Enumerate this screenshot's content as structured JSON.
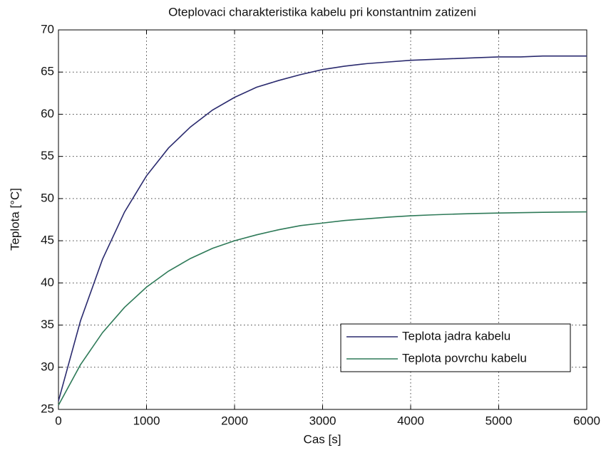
{
  "chart_data": {
    "type": "line",
    "title": "Oteplovaci charakteristika kabelu pri konstantnim zatizeni",
    "xlabel": "Cas [s]",
    "ylabel": "Teplota [°C]",
    "x": [
      0,
      250,
      500,
      750,
      1000,
      1250,
      1500,
      1750,
      2000,
      2250,
      2500,
      2750,
      3000,
      3250,
      3500,
      3750,
      4000,
      4250,
      4500,
      4750,
      5000,
      5250,
      5500,
      5750,
      6000
    ],
    "series": [
      {
        "name": "Teplota jadra kabelu",
        "color": "#2a2a6e",
        "values": [
          26,
          35.5,
          42.8,
          48.4,
          52.7,
          56.0,
          58.5,
          60.5,
          62.0,
          63.2,
          64.0,
          64.7,
          65.3,
          65.7,
          66.0,
          66.2,
          66.4,
          66.5,
          66.6,
          66.7,
          66.8,
          66.8,
          66.9,
          66.9,
          66.9
        ]
      },
      {
        "name": "Teplota povrchu kabelu",
        "color": "#2e7a58",
        "values": [
          25.5,
          30.3,
          34.1,
          37.1,
          39.5,
          41.4,
          42.9,
          44.1,
          45.0,
          45.7,
          46.3,
          46.8,
          47.1,
          47.4,
          47.6,
          47.8,
          47.96,
          48.07,
          48.16,
          48.23,
          48.29,
          48.33,
          48.37,
          48.4,
          48.42
        ]
      }
    ],
    "xlim": [
      0,
      6000
    ],
    "xticks": [
      0,
      1000,
      2000,
      3000,
      4000,
      5000,
      6000
    ],
    "ylim": [
      25,
      70
    ],
    "yticks": [
      25,
      30,
      35,
      40,
      45,
      50,
      55,
      60,
      65,
      70
    ],
    "grid": true,
    "legend": "lower right"
  }
}
